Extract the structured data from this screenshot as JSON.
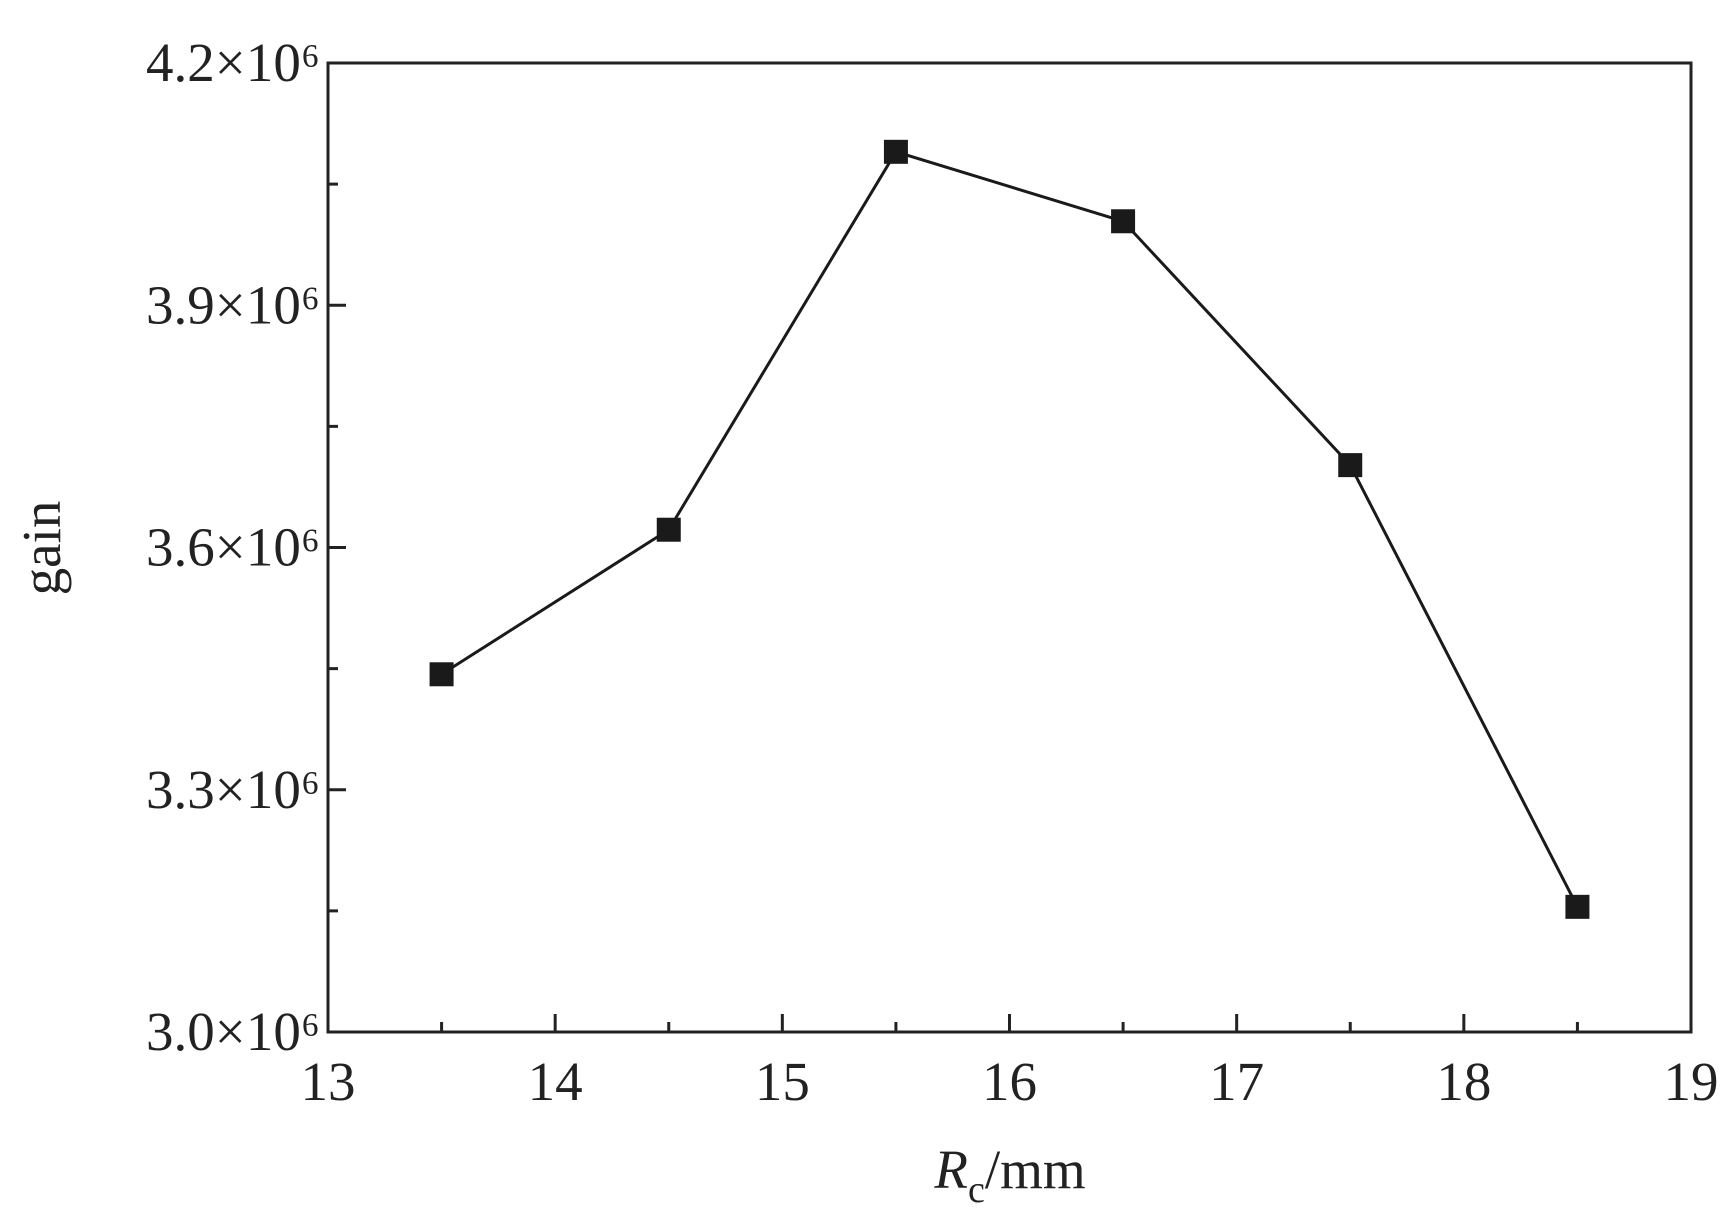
{
  "chart_data": {
    "type": "line",
    "xlabel": [
      "R",
      "c",
      "/mm"
    ],
    "ylabel": "gain",
    "x": [
      13.5,
      14.5,
      15.5,
      16.5,
      17.5,
      18.5
    ],
    "series": [
      {
        "color": "#1a1a1a",
        "marker": "square",
        "values": [
          3443000,
          3622000,
          4090000,
          4004000,
          3702000,
          3155000
        ]
      }
    ],
    "xlim": [
      13,
      19
    ],
    "xticks": [
      13,
      14,
      15,
      16,
      17,
      18,
      19
    ],
    "x_minor_ticks": [
      13.5,
      14.5,
      15.5,
      16.5,
      17.5,
      18.5
    ],
    "ylim": [
      3000000,
      4200000
    ],
    "yticks": [
      {
        "value": 3000000,
        "label": "3.0×10⁶"
      },
      {
        "value": 3300000,
        "label": "3.3×10⁶"
      },
      {
        "value": 3600000,
        "label": "3.6×10⁶"
      },
      {
        "value": 3900000,
        "label": "3.9×10⁶"
      },
      {
        "value": 4200000,
        "label": "4.2×10⁶"
      }
    ],
    "y_minor_ticks": [
      3150000,
      3450000,
      3750000,
      4050000
    ],
    "grid": false
  }
}
